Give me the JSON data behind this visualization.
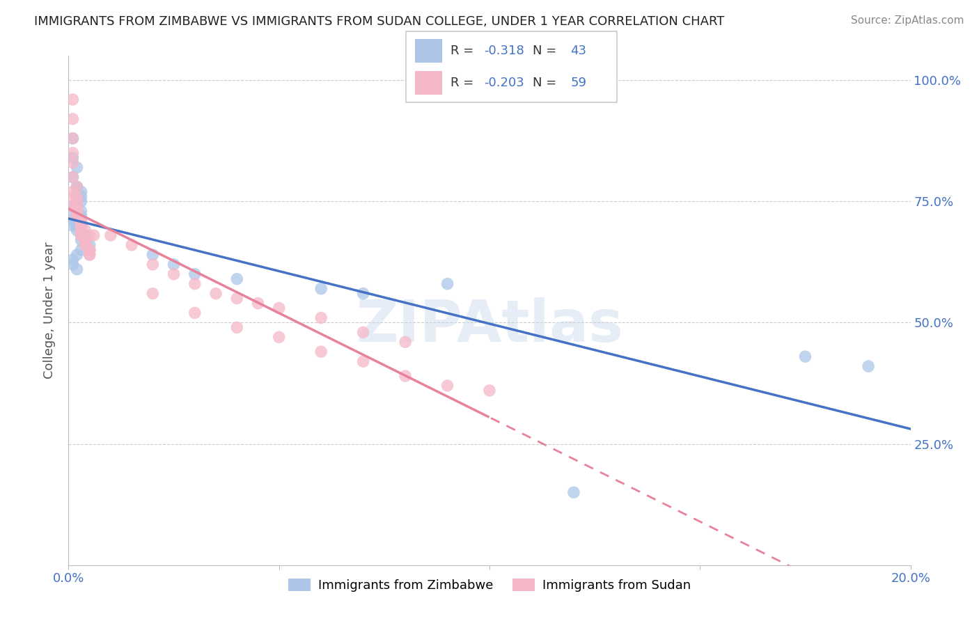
{
  "title": "IMMIGRANTS FROM ZIMBABWE VS IMMIGRANTS FROM SUDAN COLLEGE, UNDER 1 YEAR CORRELATION CHART",
  "source": "Source: ZipAtlas.com",
  "ylabel": "College, Under 1 year",
  "watermark": "ZIPAtlas",
  "legend_r_zimbabwe": "-0.318",
  "legend_n_zimbabwe": "43",
  "legend_r_sudan": "-0.203",
  "legend_n_sudan": "59",
  "zimbabwe_color": "#adc6e8",
  "sudan_color": "#f5b8c8",
  "zimbabwe_line_color": "#4472c4",
  "sudan_line_color": "#e8829a",
  "xlim": [
    0.0,
    0.2
  ],
  "ylim": [
    0.0,
    1.05
  ],
  "xticks": [
    0.0,
    0.05,
    0.1,
    0.15,
    0.2
  ],
  "xtick_labels": [
    "0.0%",
    "",
    "",
    "",
    "20.0%"
  ],
  "yticks": [
    0.0,
    0.25,
    0.5,
    0.75,
    1.0
  ],
  "ytick_labels": [
    "",
    "25.0%",
    "50.0%",
    "75.0%",
    "100.0%"
  ],
  "zimbabwe_x": [
    0.001,
    0.001,
    0.002,
    0.001,
    0.002,
    0.002,
    0.003,
    0.003,
    0.002,
    0.003,
    0.001,
    0.002,
    0.001,
    0.003,
    0.003,
    0.002,
    0.001,
    0.001,
    0.002,
    0.003,
    0.002,
    0.003,
    0.004,
    0.003,
    0.004,
    0.004,
    0.005,
    0.005,
    0.003,
    0.002,
    0.001,
    0.001,
    0.002,
    0.02,
    0.025,
    0.03,
    0.04,
    0.06,
    0.07,
    0.09,
    0.12,
    0.175,
    0.19
  ],
  "zimbabwe_y": [
    0.88,
    0.84,
    0.82,
    0.8,
    0.78,
    0.78,
    0.77,
    0.76,
    0.76,
    0.75,
    0.74,
    0.74,
    0.73,
    0.73,
    0.72,
    0.72,
    0.71,
    0.7,
    0.7,
    0.69,
    0.69,
    0.68,
    0.68,
    0.67,
    0.67,
    0.66,
    0.66,
    0.65,
    0.65,
    0.64,
    0.63,
    0.62,
    0.61,
    0.64,
    0.62,
    0.6,
    0.59,
    0.57,
    0.56,
    0.58,
    0.15,
    0.43,
    0.41
  ],
  "sudan_x": [
    0.001,
    0.001,
    0.001,
    0.001,
    0.001,
    0.001,
    0.002,
    0.002,
    0.002,
    0.002,
    0.002,
    0.002,
    0.003,
    0.003,
    0.003,
    0.003,
    0.003,
    0.003,
    0.004,
    0.004,
    0.004,
    0.004,
    0.005,
    0.005,
    0.005,
    0.005,
    0.001,
    0.002,
    0.003,
    0.001,
    0.002,
    0.003,
    0.004,
    0.005,
    0.006,
    0.001,
    0.002,
    0.003,
    0.01,
    0.015,
    0.02,
    0.025,
    0.03,
    0.035,
    0.04,
    0.045,
    0.05,
    0.06,
    0.07,
    0.08,
    0.02,
    0.03,
    0.04,
    0.05,
    0.06,
    0.07,
    0.08,
    0.09,
    0.1
  ],
  "sudan_y": [
    0.96,
    0.92,
    0.88,
    0.85,
    0.83,
    0.8,
    0.78,
    0.76,
    0.75,
    0.74,
    0.73,
    0.72,
    0.71,
    0.7,
    0.7,
    0.69,
    0.68,
    0.68,
    0.67,
    0.67,
    0.66,
    0.66,
    0.65,
    0.65,
    0.64,
    0.64,
    0.77,
    0.73,
    0.7,
    0.74,
    0.72,
    0.71,
    0.69,
    0.68,
    0.68,
    0.76,
    0.72,
    0.7,
    0.68,
    0.66,
    0.62,
    0.6,
    0.58,
    0.56,
    0.55,
    0.54,
    0.53,
    0.51,
    0.48,
    0.46,
    0.56,
    0.52,
    0.49,
    0.47,
    0.44,
    0.42,
    0.39,
    0.37,
    0.36
  ],
  "background_color": "#ffffff",
  "grid_color": "#cccccc",
  "title_color": "#222222",
  "axis_label_color": "#555555",
  "tick_color": "#4472c4"
}
